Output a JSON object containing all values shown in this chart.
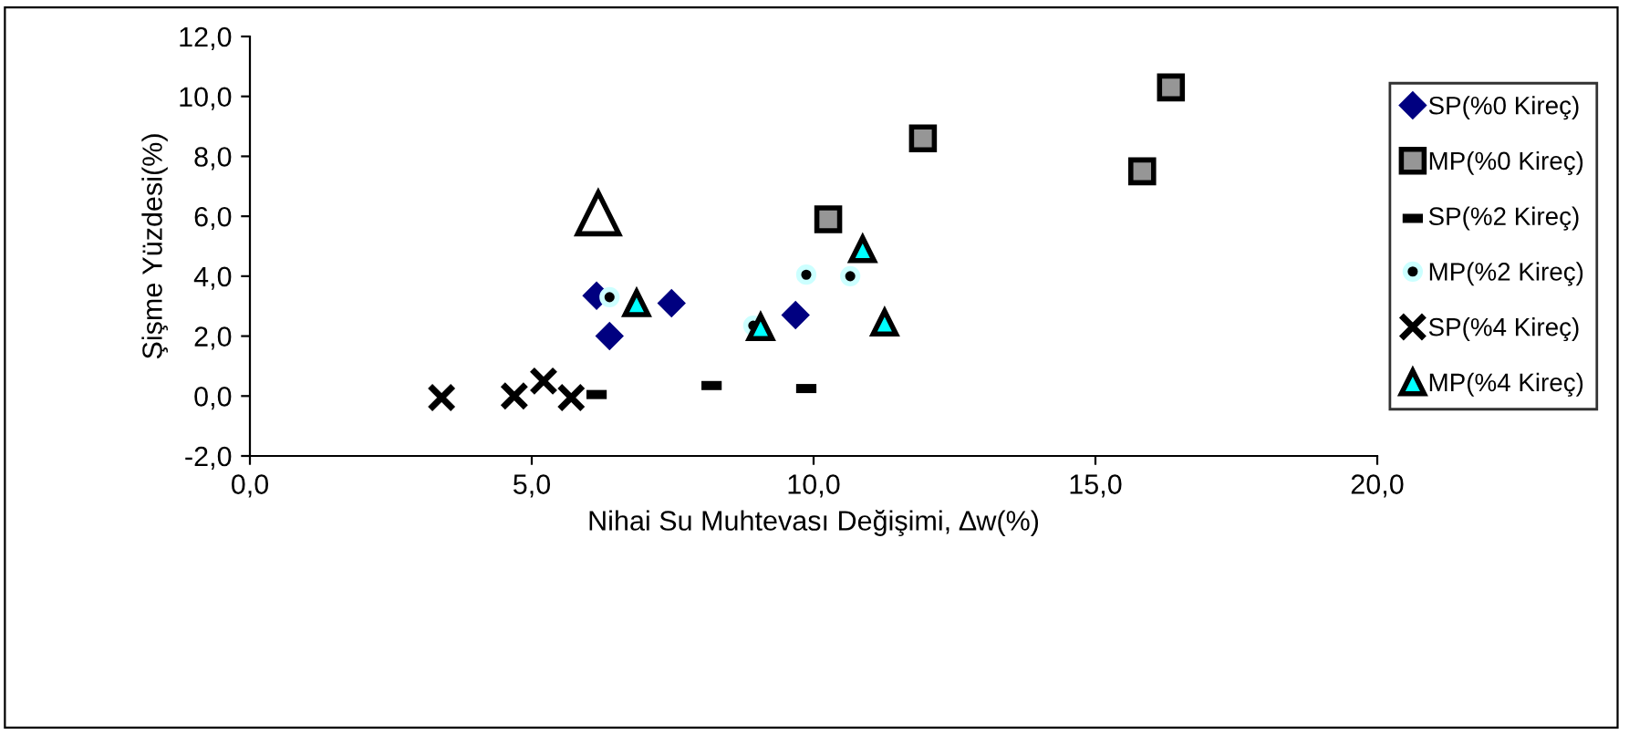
{
  "chart_data": {
    "type": "scatter",
    "xlabel": "Nihai Su Muhtevası Değişimi, ∆w(%)",
    "ylabel": "Şişme Yüzdesi(%)",
    "xlim": [
      0,
      20
    ],
    "xticks": [
      {
        "value": 0,
        "label": "0,0"
      },
      {
        "value": 5,
        "label": "5,0"
      },
      {
        "value": 10,
        "label": "10,0"
      },
      {
        "value": 15,
        "label": "15,0"
      },
      {
        "value": 20,
        "label": "20,0"
      }
    ],
    "ylim": [
      -2,
      12
    ],
    "yticks": [
      {
        "value": -2,
        "label": "-2,0"
      },
      {
        "value": 0,
        "label": "0,0"
      },
      {
        "value": 2,
        "label": "2,0"
      },
      {
        "value": 4,
        "label": "4,0"
      },
      {
        "value": 6,
        "label": "6,0"
      },
      {
        "value": 8,
        "label": "8,0"
      },
      {
        "value": 10,
        "label": "10,0"
      },
      {
        "value": 12,
        "label": "12,0"
      }
    ],
    "grid": false,
    "legend": "right",
    "series": [
      {
        "name": "SP(%0 Kireç)",
        "color": "#000080",
        "marker": "diamond",
        "x": [
          6.15,
          6.38,
          7.48,
          9.68
        ],
        "values": [
          3.35,
          2.0,
          3.1,
          2.7
        ]
      },
      {
        "name": "MP(%0 Kireç)",
        "color": "#969696",
        "marker": "square",
        "x": [
          10.26,
          11.94,
          15.83,
          16.34
        ],
        "values": [
          5.9,
          8.6,
          7.5,
          10.3
        ]
      },
      {
        "name": "SP(%2 Kireç)",
        "color": "#000000",
        "x": [
          6.15,
          8.19,
          9.87
        ],
        "values": [
          0.05,
          0.35,
          0.25
        ]
      },
      {
        "name": "MP(%2 Kireç)",
        "color": "#000000",
        "marker": "circle",
        "x": [
          6.38,
          9.87,
          10.65,
          8.93
        ],
        "values": [
          3.3,
          4.05,
          4.0,
          2.35
        ]
      },
      {
        "name": "SP(%4 Kireç)",
        "color": "#000000",
        "marker": "cross",
        "x": [
          3.4,
          4.69,
          5.21,
          5.7
        ],
        "values": [
          -0.05,
          0.0,
          0.5,
          -0.05
        ]
      },
      {
        "name": "MP(%4 Kireç)",
        "color": "#00ffff",
        "marker": "triangle",
        "x": [
          6.86,
          10.87,
          11.26,
          9.06
        ],
        "values": [
          3.1,
          4.9,
          2.45,
          2.3
        ]
      },
      {
        "color": "#ffffff",
        "marker": "triangle",
        "x": [
          6.18
        ],
        "values": [
          6.1
        ]
      }
    ]
  }
}
